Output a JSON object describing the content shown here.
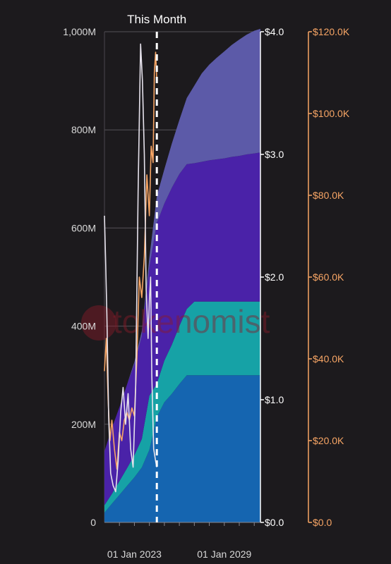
{
  "chart_data": {
    "type": "area",
    "title": "",
    "marker_label": "This Month",
    "x_tick_labels": [
      "01 Jan 2023",
      "01 Jan 2029"
    ],
    "xlim": [
      "2021-01-01",
      "2031-06-01"
    ],
    "marker_date": "2024-07-01",
    "y_left": {
      "ylim": [
        0,
        1000
      ],
      "tick_labels": [
        "0",
        "200M",
        "400M",
        "600M",
        "800M",
        "1,000M"
      ]
    },
    "y_mid": {
      "ylim": [
        0,
        4
      ],
      "tick_labels": [
        "$0.0",
        "$1.0",
        "$2.0",
        "$3.0",
        "$4.0"
      ]
    },
    "y_right": {
      "ylim": [
        0,
        120
      ],
      "tick_labels": [
        "$0.0",
        "$20.0K",
        "$40.0K",
        "$60.0K",
        "$80.0K",
        "$100.0K",
        "$120.0K"
      ]
    },
    "supply_x": [
      "2021-01-01",
      "2021-07-01",
      "2022-01-01",
      "2022-07-01",
      "2023-01-01",
      "2023-07-01",
      "2024-01-01",
      "2024-07-01",
      "2025-01-01",
      "2025-07-01",
      "2026-01-01",
      "2026-07-01",
      "2027-01-01",
      "2027-07-01",
      "2028-01-01",
      "2028-07-01",
      "2029-01-01",
      "2029-07-01",
      "2030-01-01",
      "2030-07-01",
      "2031-01-01",
      "2031-06-01"
    ],
    "supply_series": [
      {
        "values": [
          20,
          38,
          56,
          74,
          92,
          112,
          148,
          215,
          245,
          262,
          282,
          300,
          300,
          300,
          300,
          300,
          300,
          300,
          300,
          300,
          300,
          300
        ],
        "color": "#1565b0"
      },
      {
        "values": [
          15,
          20,
          28,
          36,
          45,
          58,
          110,
          68,
          85,
          100,
          118,
          135,
          150,
          150,
          150,
          150,
          150,
          150,
          150,
          150,
          150,
          150
        ],
        "color": "#16a2a6"
      },
      {
        "values": [
          110,
          134,
          151,
          170,
          185,
          210,
          262,
          327,
          320,
          320,
          310,
          295,
          282,
          285,
          288,
          290,
          292,
          295,
          297,
          300,
          302,
          304
        ],
        "color": "#4a22a8"
      },
      {
        "values": [
          0,
          0,
          0,
          0,
          5,
          10,
          20,
          55,
          70,
          90,
          110,
          135,
          158,
          180,
          195,
          207,
          218,
          228,
          237,
          244,
          250,
          252
        ],
        "color": "#5c5aa8"
      }
    ],
    "price_series": [
      {
        "axis": "right",
        "color": "#f7a565",
        "x": [
          "2021-01-01",
          "2021-02-15",
          "2021-04-01",
          "2021-05-15",
          "2021-07-01",
          "2021-09-01",
          "2021-11-01",
          "2022-01-01",
          "2022-03-01",
          "2022-05-01",
          "2022-07-01",
          "2022-09-01",
          "2022-11-01",
          "2023-01-01",
          "2023-03-01",
          "2023-05-01",
          "2023-07-01",
          "2023-09-01",
          "2023-11-01",
          "2024-01-01",
          "2024-02-15",
          "2024-04-01",
          "2024-05-01",
          "2024-06-01",
          "2024-07-01"
        ],
        "values": [
          37,
          45,
          30,
          20,
          25,
          18,
          13,
          22,
          20,
          25,
          27,
          25,
          28,
          26,
          40,
          60,
          55,
          65,
          85,
          75,
          92,
          88,
          110,
          115,
          108
        ]
      },
      {
        "axis": "mid",
        "color": "#e6e2ec",
        "x": [
          "2021-01-01",
          "2021-02-01",
          "2021-03-01",
          "2021-04-15",
          "2021-06-01",
          "2021-08-01",
          "2021-10-01",
          "2021-12-01",
          "2022-02-01",
          "2022-04-01",
          "2022-06-01",
          "2022-08-01",
          "2022-10-01",
          "2022-12-01",
          "2023-02-01",
          "2023-04-01",
          "2023-06-01",
          "2023-07-15",
          "2023-09-01",
          "2023-10-15",
          "2023-12-01",
          "2024-01-01",
          "2024-02-01",
          "2024-03-01",
          "2024-04-15",
          "2024-06-01",
          "2024-07-01"
        ],
        "values": [
          2.5,
          2.1,
          1.7,
          0.85,
          0.4,
          0.3,
          0.25,
          0.5,
          0.9,
          1.1,
          0.8,
          1.05,
          0.6,
          0.45,
          1.1,
          2.7,
          3.9,
          3.6,
          3.0,
          1.9,
          1.5,
          1.8,
          2.0,
          1.2,
          0.6,
          0.5,
          0.45
        ]
      }
    ]
  },
  "watermark": "tokenomist"
}
